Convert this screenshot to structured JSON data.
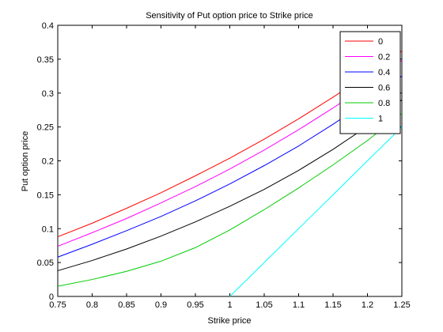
{
  "chart_data": {
    "type": "line",
    "title": "Sensitivity of Put option price to Strike price",
    "xlabel": "Strike price",
    "ylabel": "Put option price",
    "xlim": [
      0.75,
      1.25
    ],
    "ylim": [
      0,
      0.4
    ],
    "xticks": [
      "0.75",
      "0.8",
      "0.85",
      "0.9",
      "0.95",
      "1",
      "1.05",
      "1.1",
      "1.15",
      "1.2",
      "1.25"
    ],
    "yticks": [
      "0",
      "0.05",
      "0.1",
      "0.15",
      "0.2",
      "0.25",
      "0.3",
      "0.35",
      "0.4"
    ],
    "grid": false,
    "legend_position": "top-right",
    "x": [
      0.75,
      0.8,
      0.85,
      0.9,
      0.95,
      1.0,
      1.05,
      1.1,
      1.15,
      1.2,
      1.25
    ],
    "series": [
      {
        "name": "0",
        "color": "#ff0000",
        "x": [
          0.75,
          0.8,
          0.85,
          0.9,
          0.95,
          1.0,
          1.05,
          1.1,
          1.15,
          1.2,
          1.25
        ],
        "values": [
          0.088,
          0.108,
          0.13,
          0.153,
          0.178,
          0.204,
          0.232,
          0.262,
          0.294,
          0.327,
          0.362
        ]
      },
      {
        "name": "0.2",
        "color": "#ff00ff",
        "x": [
          0.75,
          0.8,
          0.85,
          0.9,
          0.95,
          1.0,
          1.05,
          1.1,
          1.15,
          1.2,
          1.25
        ],
        "values": [
          0.074,
          0.094,
          0.115,
          0.138,
          0.162,
          0.188,
          0.216,
          0.246,
          0.278,
          0.312,
          0.348
        ]
      },
      {
        "name": "0.4",
        "color": "#0000ff",
        "x": [
          0.75,
          0.8,
          0.85,
          0.9,
          0.95,
          1.0,
          1.05,
          1.1,
          1.15,
          1.2,
          1.25
        ],
        "values": [
          0.058,
          0.077,
          0.097,
          0.118,
          0.141,
          0.166,
          0.193,
          0.222,
          0.254,
          0.288,
          0.325
        ]
      },
      {
        "name": "0.6",
        "color": "#000000",
        "x": [
          0.75,
          0.8,
          0.85,
          0.9,
          0.95,
          1.0,
          1.05,
          1.1,
          1.15,
          1.2,
          1.25
        ],
        "values": [
          0.038,
          0.053,
          0.07,
          0.089,
          0.11,
          0.133,
          0.158,
          0.186,
          0.217,
          0.251,
          0.29
        ]
      },
      {
        "name": "0.8",
        "color": "#00cc00",
        "x": [
          0.75,
          0.8,
          0.85,
          0.9,
          0.95,
          1.0,
          1.05,
          1.1,
          1.15,
          1.2,
          1.25
        ],
        "values": [
          0.015,
          0.025,
          0.037,
          0.052,
          0.072,
          0.098,
          0.128,
          0.16,
          0.194,
          0.23,
          0.27
        ]
      },
      {
        "name": "1",
        "color": "#00ffff",
        "x": [
          1.0,
          1.05,
          1.1,
          1.15,
          1.2,
          1.25
        ],
        "values": [
          0.0,
          0.05,
          0.1,
          0.15,
          0.2,
          0.25
        ]
      }
    ]
  }
}
